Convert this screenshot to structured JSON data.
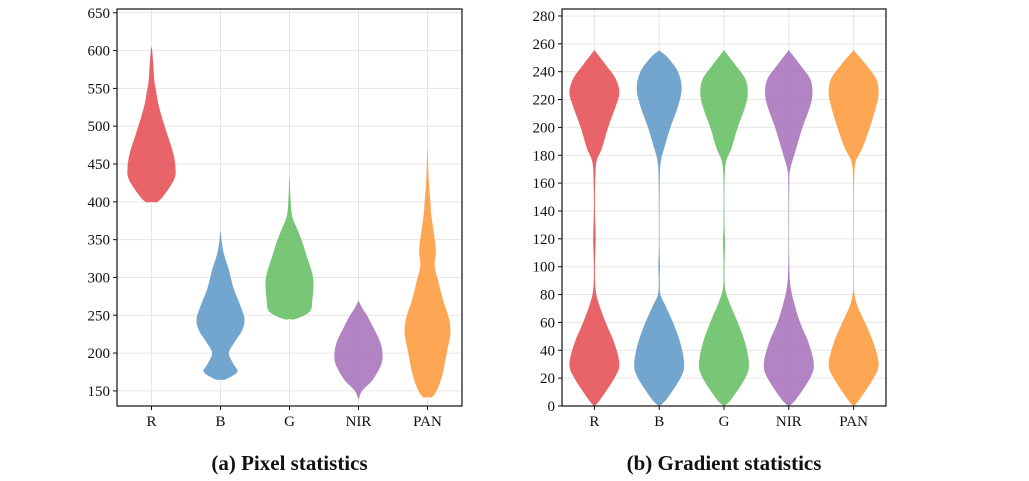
{
  "chart_data": [
    {
      "type": "violin",
      "caption": "(a) Pixel statistics",
      "categories": [
        "R",
        "B",
        "G",
        "NIR",
        "PAN"
      ],
      "colors": [
        "#e4494f",
        "#5a97c7",
        "#5fbd5e",
        "#a66fb8",
        "#fd9636"
      ],
      "ylim": [
        130,
        655
      ],
      "yticks": [
        150,
        200,
        250,
        300,
        350,
        400,
        450,
        500,
        550,
        600,
        650
      ],
      "grid": true,
      "series": [
        {
          "name": "R",
          "min": 400,
          "max": 603,
          "profile": [
            [
              400,
              0.25
            ],
            [
              410,
              0.55
            ],
            [
              430,
              0.95
            ],
            [
              445,
              1.0
            ],
            [
              465,
              0.9
            ],
            [
              490,
              0.65
            ],
            [
              510,
              0.45
            ],
            [
              530,
              0.28
            ],
            [
              545,
              0.2
            ],
            [
              560,
              0.12
            ],
            [
              580,
              0.08
            ],
            [
              603,
              0.02
            ]
          ]
        },
        {
          "name": "B",
          "min": 165,
          "max": 360,
          "profile": [
            [
              165,
              0.2
            ],
            [
              175,
              0.7
            ],
            [
              185,
              0.55
            ],
            [
              200,
              0.35
            ],
            [
              215,
              0.6
            ],
            [
              230,
              0.9
            ],
            [
              245,
              1.0
            ],
            [
              265,
              0.8
            ],
            [
              285,
              0.55
            ],
            [
              310,
              0.35
            ],
            [
              330,
              0.15
            ],
            [
              345,
              0.06
            ],
            [
              360,
              0.01
            ]
          ]
        },
        {
          "name": "G",
          "min": 245,
          "max": 430,
          "profile": [
            [
              245,
              0.25
            ],
            [
              255,
              0.85
            ],
            [
              270,
              0.95
            ],
            [
              290,
              1.0
            ],
            [
              305,
              0.95
            ],
            [
              325,
              0.75
            ],
            [
              345,
              0.55
            ],
            [
              362,
              0.35
            ],
            [
              380,
              0.12
            ],
            [
              400,
              0.05
            ],
            [
              430,
              0.01
            ]
          ]
        },
        {
          "name": "NIR",
          "min": 140,
          "max": 268,
          "profile": [
            [
              140,
              0.02
            ],
            [
              150,
              0.15
            ],
            [
              165,
              0.6
            ],
            [
              185,
              0.95
            ],
            [
              200,
              1.0
            ],
            [
              215,
              0.9
            ],
            [
              235,
              0.6
            ],
            [
              250,
              0.35
            ],
            [
              260,
              0.15
            ],
            [
              268,
              0.02
            ]
          ]
        },
        {
          "name": "PAN",
          "min": 142,
          "max": 468,
          "profile": [
            [
              142,
              0.2
            ],
            [
              155,
              0.45
            ],
            [
              175,
              0.65
            ],
            [
              200,
              0.8
            ],
            [
              225,
              0.95
            ],
            [
              245,
              0.9
            ],
            [
              270,
              0.65
            ],
            [
              295,
              0.45
            ],
            [
              315,
              0.3
            ],
            [
              335,
              0.35
            ],
            [
              355,
              0.28
            ],
            [
              385,
              0.15
            ],
            [
              400,
              0.12
            ],
            [
              430,
              0.05
            ],
            [
              468,
              0.01
            ]
          ]
        }
      ]
    },
    {
      "type": "violin",
      "caption": "(b) Gradient statistics",
      "categories": [
        "R",
        "B",
        "G",
        "NIR",
        "PAN"
      ],
      "colors": [
        "#e4494f",
        "#5a97c7",
        "#5fbd5e",
        "#a66fb8",
        "#fd9636"
      ],
      "ylim": [
        0,
        285
      ],
      "yticks": [
        0,
        20,
        40,
        60,
        80,
        100,
        120,
        140,
        160,
        180,
        200,
        220,
        240,
        260,
        280
      ],
      "grid": true,
      "series": [
        {
          "name": "R",
          "min": 0,
          "max": 255,
          "profile": [
            [
              0,
              0.02
            ],
            [
              5,
              0.25
            ],
            [
              20,
              0.8
            ],
            [
              30,
              1.0
            ],
            [
              45,
              0.8
            ],
            [
              60,
              0.45
            ],
            [
              75,
              0.15
            ],
            [
              85,
              0.04
            ],
            [
              100,
              0.02
            ],
            [
              120,
              0.05
            ],
            [
              140,
              0.02
            ],
            [
              160,
              0.03
            ],
            [
              175,
              0.08
            ],
            [
              185,
              0.3
            ],
            [
              200,
              0.55
            ],
            [
              215,
              0.85
            ],
            [
              225,
              1.0
            ],
            [
              235,
              0.85
            ],
            [
              245,
              0.45
            ],
            [
              255,
              0.02
            ]
          ]
        },
        {
          "name": "B",
          "min": 0,
          "max": 255,
          "profile": [
            [
              0,
              0.02
            ],
            [
              5,
              0.3
            ],
            [
              20,
              0.85
            ],
            [
              30,
              1.0
            ],
            [
              45,
              0.85
            ],
            [
              60,
              0.55
            ],
            [
              72,
              0.25
            ],
            [
              80,
              0.05
            ],
            [
              90,
              0.02
            ],
            [
              100,
              0.03
            ],
            [
              120,
              0.01
            ],
            [
              160,
              0.02
            ],
            [
              175,
              0.06
            ],
            [
              185,
              0.2
            ],
            [
              200,
              0.45
            ],
            [
              215,
              0.75
            ],
            [
              228,
              0.9
            ],
            [
              240,
              0.75
            ],
            [
              250,
              0.35
            ],
            [
              255,
              0.02
            ]
          ]
        },
        {
          "name": "G",
          "min": 0,
          "max": 255,
          "profile": [
            [
              0,
              0.02
            ],
            [
              5,
              0.3
            ],
            [
              20,
              0.85
            ],
            [
              30,
              1.0
            ],
            [
              45,
              0.85
            ],
            [
              60,
              0.55
            ],
            [
              75,
              0.2
            ],
            [
              85,
              0.04
            ],
            [
              100,
              0.02
            ],
            [
              118,
              0.04
            ],
            [
              130,
              0.02
            ],
            [
              160,
              0.02
            ],
            [
              175,
              0.08
            ],
            [
              185,
              0.3
            ],
            [
              200,
              0.55
            ],
            [
              215,
              0.85
            ],
            [
              225,
              0.95
            ],
            [
              235,
              0.85
            ],
            [
              245,
              0.45
            ],
            [
              255,
              0.02
            ]
          ]
        },
        {
          "name": "NIR",
          "min": 0,
          "max": 255,
          "profile": [
            [
              0,
              0.02
            ],
            [
              5,
              0.3
            ],
            [
              20,
              0.85
            ],
            [
              30,
              1.0
            ],
            [
              45,
              0.8
            ],
            [
              60,
              0.45
            ],
            [
              75,
              0.2
            ],
            [
              85,
              0.08
            ],
            [
              95,
              0.03
            ],
            [
              120,
              0.01
            ],
            [
              160,
              0.02
            ],
            [
              170,
              0.06
            ],
            [
              185,
              0.3
            ],
            [
              200,
              0.55
            ],
            [
              215,
              0.85
            ],
            [
              225,
              0.95
            ],
            [
              235,
              0.85
            ],
            [
              245,
              0.45
            ],
            [
              255,
              0.02
            ]
          ]
        },
        {
          "name": "PAN",
          "min": 0,
          "max": 255,
          "profile": [
            [
              0,
              0.02
            ],
            [
              5,
              0.25
            ],
            [
              20,
              0.8
            ],
            [
              30,
              1.0
            ],
            [
              45,
              0.8
            ],
            [
              60,
              0.45
            ],
            [
              72,
              0.15
            ],
            [
              80,
              0.04
            ],
            [
              90,
              0.01
            ],
            [
              130,
              0.01
            ],
            [
              160,
              0.02
            ],
            [
              175,
              0.08
            ],
            [
              185,
              0.35
            ],
            [
              200,
              0.65
            ],
            [
              215,
              0.9
            ],
            [
              225,
              1.0
            ],
            [
              235,
              0.9
            ],
            [
              245,
              0.5
            ],
            [
              255,
              0.02
            ]
          ]
        }
      ]
    }
  ]
}
